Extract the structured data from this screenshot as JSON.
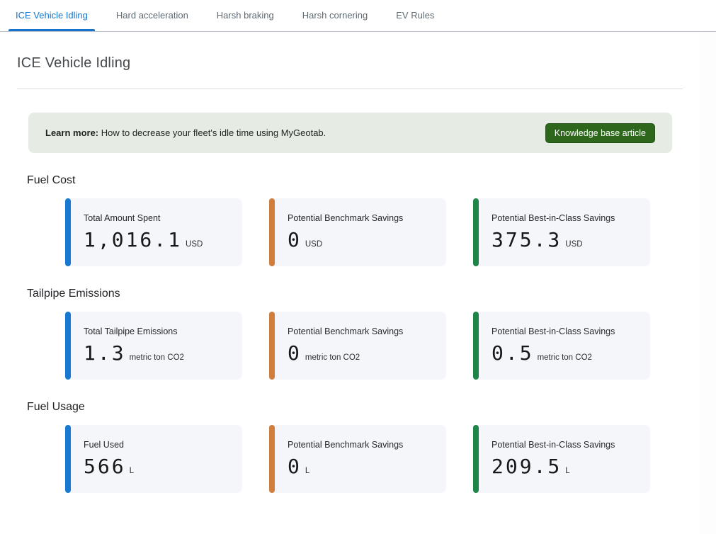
{
  "tabs": [
    {
      "label": "ICE Vehicle Idling",
      "active": true
    },
    {
      "label": "Hard acceleration",
      "active": false
    },
    {
      "label": "Harsh braking",
      "active": false
    },
    {
      "label": "Harsh cornering",
      "active": false
    },
    {
      "label": "EV Rules",
      "active": false
    }
  ],
  "page": {
    "title": "ICE Vehicle Idling"
  },
  "banner": {
    "label_bold": "Learn more:",
    "text": " How to decrease your fleet's idle time using MyGeotab.",
    "button_label": "Knowledge base article"
  },
  "colors": {
    "blue": "#1779d2",
    "orange": "#d17e3d",
    "green": "#1e8448",
    "active_tab": "#1774cc",
    "button_green": "#2d671b",
    "banner_bg": "#e6ece4",
    "card_bg": "#f4f6fa"
  },
  "sections": [
    {
      "heading": "Fuel Cost",
      "cards": [
        {
          "label": "Total Amount Spent",
          "value": "1,016.1",
          "unit": "USD",
          "accent": "blue"
        },
        {
          "label": "Potential Benchmark Savings",
          "value": "0",
          "unit": "USD",
          "accent": "orange"
        },
        {
          "label": "Potential Best-in-Class Savings",
          "value": "375.3",
          "unit": "USD",
          "accent": "green"
        }
      ]
    },
    {
      "heading": "Tailpipe Emissions",
      "cards": [
        {
          "label": "Total Tailpipe Emissions",
          "value": "1.3",
          "unit": "metric ton CO2",
          "accent": "blue"
        },
        {
          "label": "Potential Benchmark Savings",
          "value": "0",
          "unit": "metric ton CO2",
          "accent": "orange"
        },
        {
          "label": "Potential Best-in-Class Savings",
          "value": "0.5",
          "unit": "metric ton CO2",
          "accent": "green"
        }
      ]
    },
    {
      "heading": "Fuel Usage",
      "cards": [
        {
          "label": "Fuel Used",
          "value": "566",
          "unit": "L",
          "accent": "blue"
        },
        {
          "label": "Potential Benchmark Savings",
          "value": "0",
          "unit": "L",
          "accent": "orange"
        },
        {
          "label": "Potential Best-in-Class Savings",
          "value": "209.5",
          "unit": "L",
          "accent": "green"
        }
      ]
    }
  ]
}
